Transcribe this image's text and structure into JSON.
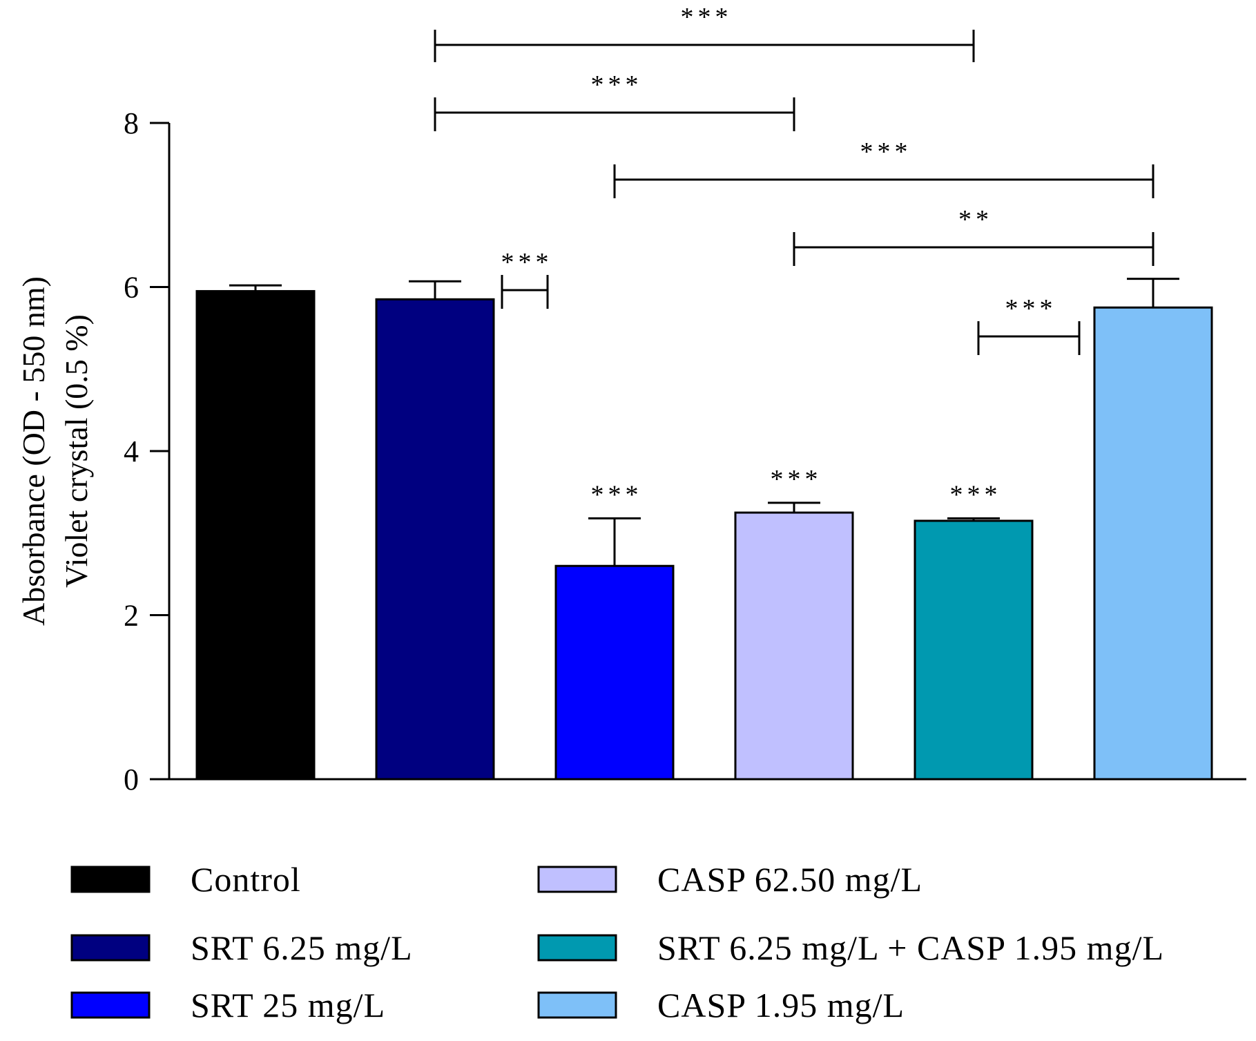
{
  "chart_data": {
    "type": "bar",
    "title": "",
    "xlabel": "",
    "ylabel_line1": "Absorbance (OD - 550 nm)",
    "ylabel_line2": "Violet crystal (0.5 %)",
    "ylim": [
      0,
      8
    ],
    "yticks": [
      "0",
      "2",
      "4",
      "6",
      "8"
    ],
    "categories": [
      "Control",
      "SRT 6.25 mg/L",
      "SRT 25 mg/L",
      "CASP 62.50 mg/L",
      "SRT 6.25 mg/L + CASP 1.95 mg/L",
      "CASP 1.95 mg/L"
    ],
    "values": [
      5.95,
      5.85,
      2.6,
      3.25,
      3.15,
      5.75
    ],
    "errors": [
      0.07,
      0.22,
      0.58,
      0.12,
      0.03,
      0.35
    ],
    "colors": [
      "#000000",
      "#000080",
      "#0000ff",
      "#c0c0ff",
      "#0099b0",
      "#7ec0f8"
    ],
    "bar_labels": [
      "",
      "",
      "***",
      "***",
      "***",
      ""
    ],
    "comparisons": [
      {
        "from": 1,
        "to": 4,
        "label": "***"
      },
      {
        "from": 1,
        "to": 3,
        "label": "***"
      },
      {
        "from": 2,
        "to": 5,
        "label": "***"
      },
      {
        "from": 3,
        "to": 5,
        "label": "**"
      },
      {
        "from": 1,
        "to": 2,
        "label": "***"
      },
      {
        "from": 4,
        "to": 5,
        "label": "***"
      }
    ],
    "legend": [
      {
        "label": "Control",
        "color": "#000000"
      },
      {
        "label": "SRT 6.25 mg/L",
        "color": "#000080"
      },
      {
        "label": "SRT 25 mg/L",
        "color": "#0000ff"
      },
      {
        "label": "CASP 62.50 mg/L",
        "color": "#c0c0ff"
      },
      {
        "label": "SRT 6.25 mg/L + CASP 1.95 mg/L",
        "color": "#0099b0"
      },
      {
        "label": "CASP 1.95 mg/L",
        "color": "#7ec0f8"
      }
    ],
    "legend_position": "bottom"
  }
}
